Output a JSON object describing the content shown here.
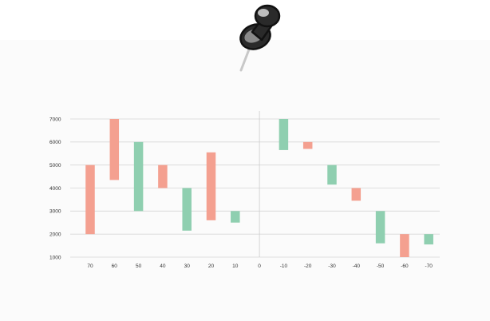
{
  "chart_data": {
    "type": "bar",
    "subtype": "floating-range",
    "title": "",
    "xlabel": "",
    "ylabel": "",
    "categories": [
      "70",
      "60",
      "50",
      "40",
      "30",
      "20",
      "10",
      "0",
      "-10",
      "-20",
      "-30",
      "-40",
      "-50",
      "-60",
      "-70"
    ],
    "ranges": [
      {
        "category": "70",
        "low": 2000,
        "high": 5000,
        "color": "#f4a090"
      },
      {
        "category": "60",
        "low": 4350,
        "high": 7000,
        "color": "#f4a090"
      },
      {
        "category": "50",
        "low": 3000,
        "high": 6000,
        "color": "#8fcfb0"
      },
      {
        "category": "40",
        "low": 4000,
        "high": 5000,
        "color": "#f4a090"
      },
      {
        "category": "30",
        "low": 2150,
        "high": 4000,
        "color": "#8fcfb0"
      },
      {
        "category": "20",
        "low": 2600,
        "high": 5550,
        "color": "#f4a090"
      },
      {
        "category": "10",
        "low": 2500,
        "high": 3000,
        "color": "#8fcfb0"
      },
      {
        "category": "-10",
        "low": 5650,
        "high": 7000,
        "color": "#8fcfb0"
      },
      {
        "category": "-20",
        "low": 5700,
        "high": 6000,
        "color": "#f4a090"
      },
      {
        "category": "-30",
        "low": 4150,
        "high": 5000,
        "color": "#8fcfb0"
      },
      {
        "category": "-40",
        "low": 3450,
        "high": 4000,
        "color": "#f4a090"
      },
      {
        "category": "-50",
        "low": 1600,
        "high": 3000,
        "color": "#8fcfb0"
      },
      {
        "category": "-60",
        "low": 1000,
        "high": 2000,
        "color": "#f4a090"
      },
      {
        "category": "-70",
        "low": 1550,
        "high": 2000,
        "color": "#8fcfb0"
      }
    ],
    "y_ticks": [
      1000,
      2000,
      3000,
      4000,
      5000,
      6000,
      7000
    ],
    "ylim": [
      1000,
      7000
    ],
    "grid": true,
    "divider_at": "0",
    "colors": {
      "increase": "#8fcfb0",
      "decrease": "#f4a090",
      "grid": "#d6d6d6",
      "divider": "#cccccc"
    }
  },
  "decoration": {
    "pin": "pushpin-icon"
  }
}
